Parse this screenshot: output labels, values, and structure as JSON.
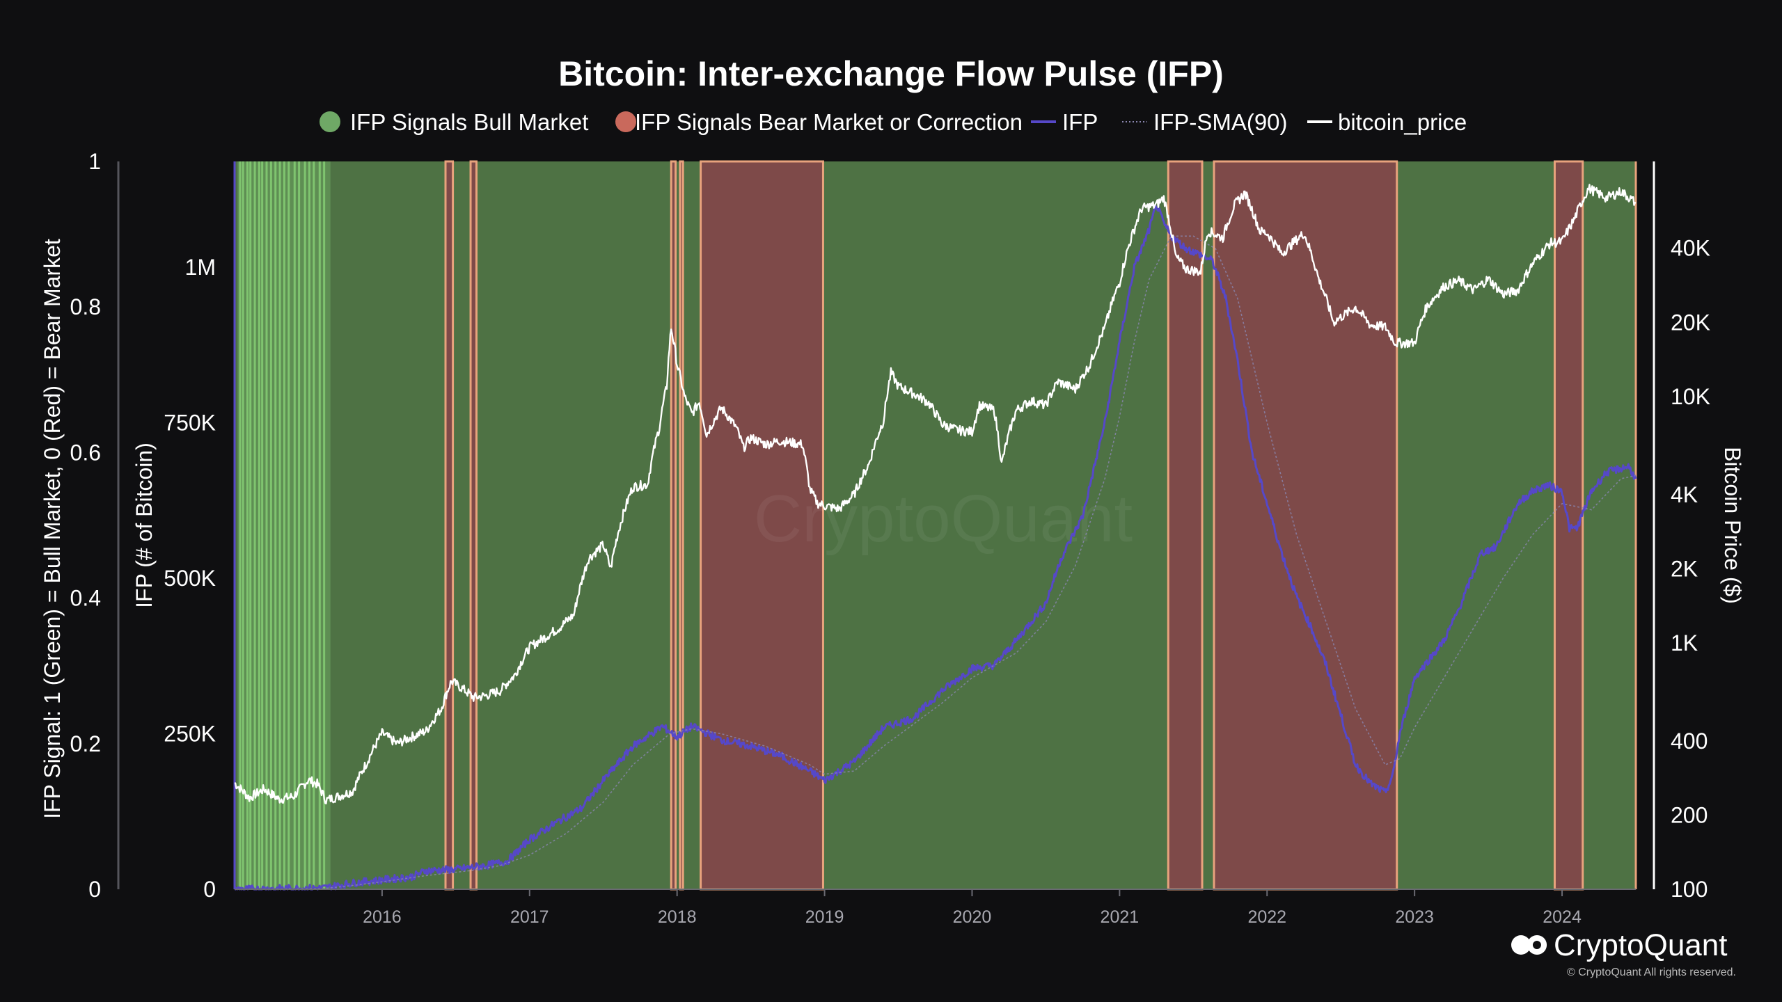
{
  "colors": {
    "background": "#0f0f11",
    "bull": "#4e7244",
    "bull_spike": "#7fc46f",
    "bear": "#7e4a49",
    "border": "#e8a37d",
    "ifp": "#5648c8",
    "sma": "#8a86b0",
    "price": "#ffffff",
    "legend_bull": "#6fa866",
    "legend_bear": "#c9695c"
  },
  "watermark": "CryptoQuant",
  "brand": {
    "name": "CryptoQuant",
    "copyright": "© CryptoQuant All rights reserved."
  },
  "chart_data": {
    "type": "line",
    "title": "Bitcoin: Inter-exchange Flow Pulse (IFP)",
    "legend": [
      {
        "label": "IFP Signals Bull Market",
        "marker": "circle",
        "color": "#6fa866"
      },
      {
        "label": "IFP Signals Bear Market or Correction",
        "marker": "circle",
        "color": "#c9695c"
      },
      {
        "label": "IFP",
        "marker": "line",
        "color": "#5648c8"
      },
      {
        "label": "IFP-SMA(90)",
        "marker": "dotted",
        "color": "#8a86b0"
      },
      {
        "label": "bitcoin_price",
        "marker": "line",
        "color": "#ffffff"
      }
    ],
    "x_range": [
      2015.0,
      2024.5
    ],
    "x_ticks": [
      {
        "v": 2016.0,
        "label": "2016"
      },
      {
        "v": 2017.0,
        "label": "2017"
      },
      {
        "v": 2018.0,
        "label": "2018"
      },
      {
        "v": 2019.0,
        "label": "2019"
      },
      {
        "v": 2020.0,
        "label": "2020"
      },
      {
        "v": 2021.0,
        "label": "2021"
      },
      {
        "v": 2022.0,
        "label": "2022"
      },
      {
        "v": 2023.0,
        "label": "2023"
      },
      {
        "v": 2024.0,
        "label": "2024"
      }
    ],
    "y_signal": {
      "title": "IFP Signal: 1 (Green) = Bull Market, 0 (Red) = Bear Market",
      "range": [
        0,
        1
      ],
      "ticks": [
        {
          "v": 0,
          "label": "0"
        },
        {
          "v": 0.2,
          "label": "0.2"
        },
        {
          "v": 0.4,
          "label": "0.4"
        },
        {
          "v": 0.6,
          "label": "0.6"
        },
        {
          "v": 0.8,
          "label": "0.8"
        },
        {
          "v": 1,
          "label": "1"
        }
      ]
    },
    "y_ifp": {
      "title": "IFP (# of Bitcoin)",
      "range": [
        0,
        1170000
      ],
      "ticks": [
        {
          "v": 0,
          "label": "0"
        },
        {
          "v": 250000,
          "label": "250K"
        },
        {
          "v": 500000,
          "label": "500K"
        },
        {
          "v": 750000,
          "label": "750K"
        },
        {
          "v": 1000000,
          "label": "1M"
        }
      ]
    },
    "y_price": {
      "title": "Bitcoin Price ($)",
      "scale": "log",
      "range": [
        100,
        90000
      ],
      "ticks": [
        {
          "v": 100,
          "label": "100"
        },
        {
          "v": 200,
          "label": "200"
        },
        {
          "v": 400,
          "label": "400"
        },
        {
          "v": 1000,
          "label": "1K"
        },
        {
          "v": 2000,
          "label": "2K"
        },
        {
          "v": 4000,
          "label": "4K"
        },
        {
          "v": 10000,
          "label": "10K"
        },
        {
          "v": 20000,
          "label": "20K"
        },
        {
          "v": 40000,
          "label": "40K"
        }
      ]
    },
    "bull_background": {
      "from": 2015.0,
      "to": 2024.5,
      "signal": 1
    },
    "bull_spike_region": {
      "from": 2015.02,
      "to": 2015.65
    },
    "bull_spikes": [
      2015.03,
      2015.05,
      2015.08,
      2015.1,
      2015.13,
      2015.16,
      2015.18,
      2015.21,
      2015.24,
      2015.27,
      2015.3,
      2015.33,
      2015.36,
      2015.4,
      2015.43,
      2015.47,
      2015.5,
      2015.53,
      2015.57,
      2015.6
    ],
    "bear_regions": [
      {
        "from": 2016.43,
        "to": 2016.48,
        "signal": 0
      },
      {
        "from": 2016.6,
        "to": 2016.64,
        "signal": 0
      },
      {
        "from": 2017.96,
        "to": 2017.99,
        "signal": 0
      },
      {
        "from": 2018.02,
        "to": 2018.04,
        "signal": 0
      },
      {
        "from": 2018.16,
        "to": 2018.99,
        "signal": 0
      },
      {
        "from": 2021.33,
        "to": 2021.56,
        "signal": 0
      },
      {
        "from": 2021.64,
        "to": 2022.88,
        "signal": 0
      },
      {
        "from": 2023.95,
        "to": 2024.14,
        "signal": 0
      }
    ],
    "series": [
      {
        "name": "bitcoin_price",
        "axis": "price",
        "points": [
          [
            2015.0,
            270
          ],
          [
            2015.1,
            235
          ],
          [
            2015.2,
            255
          ],
          [
            2015.3,
            232
          ],
          [
            2015.4,
            238
          ],
          [
            2015.5,
            278
          ],
          [
            2015.56,
            268
          ],
          [
            2015.62,
            230
          ],
          [
            2015.7,
            238
          ],
          [
            2015.8,
            250
          ],
          [
            2015.9,
            330
          ],
          [
            2016.0,
            430
          ],
          [
            2016.1,
            390
          ],
          [
            2016.2,
            415
          ],
          [
            2016.3,
            440
          ],
          [
            2016.4,
            540
          ],
          [
            2016.47,
            700
          ],
          [
            2016.55,
            650
          ],
          [
            2016.62,
            600
          ],
          [
            2016.7,
            610
          ],
          [
            2016.8,
            640
          ],
          [
            2016.9,
            740
          ],
          [
            2017.0,
            960
          ],
          [
            2017.1,
            1050
          ],
          [
            2017.2,
            1150
          ],
          [
            2017.3,
            1300
          ],
          [
            2017.4,
            2200
          ],
          [
            2017.5,
            2500
          ],
          [
            2017.55,
            2000
          ],
          [
            2017.6,
            2800
          ],
          [
            2017.7,
            4300
          ],
          [
            2017.8,
            4400
          ],
          [
            2017.88,
            7500
          ],
          [
            2017.93,
            11000
          ],
          [
            2017.96,
            19000
          ],
          [
            2018.0,
            13500
          ],
          [
            2018.05,
            10000
          ],
          [
            2018.1,
            8500
          ],
          [
            2018.15,
            9500
          ],
          [
            2018.2,
            7000
          ],
          [
            2018.3,
            9000
          ],
          [
            2018.4,
            7500
          ],
          [
            2018.45,
            6200
          ],
          [
            2018.5,
            6800
          ],
          [
            2018.6,
            6400
          ],
          [
            2018.7,
            6600
          ],
          [
            2018.85,
            6400
          ],
          [
            2018.9,
            4200
          ],
          [
            2018.95,
            3700
          ],
          [
            2019.0,
            3600
          ],
          [
            2019.1,
            3500
          ],
          [
            2019.2,
            4000
          ],
          [
            2019.3,
            5300
          ],
          [
            2019.4,
            8000
          ],
          [
            2019.45,
            12500
          ],
          [
            2019.5,
            11000
          ],
          [
            2019.6,
            10300
          ],
          [
            2019.7,
            9500
          ],
          [
            2019.8,
            7700
          ],
          [
            2019.9,
            7300
          ],
          [
            2020.0,
            7200
          ],
          [
            2020.05,
            9200
          ],
          [
            2020.15,
            8800
          ],
          [
            2020.2,
            5300
          ],
          [
            2020.3,
            8800
          ],
          [
            2020.4,
            9600
          ],
          [
            2020.5,
            9200
          ],
          [
            2020.58,
            11500
          ],
          [
            2020.7,
            10700
          ],
          [
            2020.8,
            13500
          ],
          [
            2020.9,
            19000
          ],
          [
            2021.0,
            29000
          ],
          [
            2021.1,
            48000
          ],
          [
            2021.15,
            58000
          ],
          [
            2021.25,
            60000
          ],
          [
            2021.3,
            64000
          ],
          [
            2021.38,
            37000
          ],
          [
            2021.45,
            33000
          ],
          [
            2021.55,
            32000
          ],
          [
            2021.6,
            47000
          ],
          [
            2021.7,
            44000
          ],
          [
            2021.78,
            60000
          ],
          [
            2021.85,
            67000
          ],
          [
            2021.95,
            47000
          ],
          [
            2022.0,
            46000
          ],
          [
            2022.1,
            38000
          ],
          [
            2022.25,
            46000
          ],
          [
            2022.35,
            30000
          ],
          [
            2022.45,
            20000
          ],
          [
            2022.6,
            23000
          ],
          [
            2022.7,
            19500
          ],
          [
            2022.8,
            19200
          ],
          [
            2022.87,
            16500
          ],
          [
            2023.0,
            16500
          ],
          [
            2023.08,
            23000
          ],
          [
            2023.2,
            28000
          ],
          [
            2023.3,
            29500
          ],
          [
            2023.4,
            27000
          ],
          [
            2023.5,
            30000
          ],
          [
            2023.6,
            26000
          ],
          [
            2023.7,
            27000
          ],
          [
            2023.8,
            34500
          ],
          [
            2023.92,
            42000
          ],
          [
            2024.0,
            42500
          ],
          [
            2024.08,
            52000
          ],
          [
            2024.18,
            70000
          ],
          [
            2024.3,
            64000
          ],
          [
            2024.4,
            68000
          ],
          [
            2024.5,
            61000
          ]
        ]
      },
      {
        "name": "IFP",
        "axis": "ifp",
        "points": [
          [
            2015.0,
            0
          ],
          [
            2015.6,
            2000
          ],
          [
            2015.8,
            10000
          ],
          [
            2016.0,
            15000
          ],
          [
            2016.2,
            20000
          ],
          [
            2016.3,
            30000
          ],
          [
            2016.5,
            32000
          ],
          [
            2016.7,
            38000
          ],
          [
            2016.85,
            45000
          ],
          [
            2017.0,
            80000
          ],
          [
            2017.2,
            110000
          ],
          [
            2017.35,
            130000
          ],
          [
            2017.5,
            175000
          ],
          [
            2017.7,
            230000
          ],
          [
            2017.9,
            262000
          ],
          [
            2018.0,
            245000
          ],
          [
            2018.1,
            262000
          ],
          [
            2018.3,
            240000
          ],
          [
            2018.5,
            230000
          ],
          [
            2018.7,
            215000
          ],
          [
            2018.9,
            190000
          ],
          [
            2019.0,
            175000
          ],
          [
            2019.2,
            205000
          ],
          [
            2019.4,
            260000
          ],
          [
            2019.6,
            275000
          ],
          [
            2019.8,
            320000
          ],
          [
            2020.0,
            355000
          ],
          [
            2020.15,
            360000
          ],
          [
            2020.3,
            400000
          ],
          [
            2020.5,
            460000
          ],
          [
            2020.6,
            530000
          ],
          [
            2020.75,
            600000
          ],
          [
            2020.9,
            750000
          ],
          [
            2021.0,
            880000
          ],
          [
            2021.1,
            1000000
          ],
          [
            2021.15,
            1030000
          ],
          [
            2021.2,
            1060000
          ],
          [
            2021.25,
            1100000
          ],
          [
            2021.3,
            1070000
          ],
          [
            2021.35,
            1050000
          ],
          [
            2021.45,
            1030000
          ],
          [
            2021.55,
            1020000
          ],
          [
            2021.63,
            1010000
          ],
          [
            2021.72,
            950000
          ],
          [
            2021.8,
            850000
          ],
          [
            2021.9,
            700000
          ],
          [
            2022.0,
            620000
          ],
          [
            2022.1,
            540000
          ],
          [
            2022.2,
            470000
          ],
          [
            2022.3,
            420000
          ],
          [
            2022.4,
            360000
          ],
          [
            2022.5,
            280000
          ],
          [
            2022.6,
            200000
          ],
          [
            2022.7,
            170000
          ],
          [
            2022.8,
            155000
          ],
          [
            2022.85,
            180000
          ],
          [
            2022.9,
            250000
          ],
          [
            2023.0,
            340000
          ],
          [
            2023.1,
            370000
          ],
          [
            2023.2,
            400000
          ],
          [
            2023.3,
            450000
          ],
          [
            2023.45,
            540000
          ],
          [
            2023.55,
            550000
          ],
          [
            2023.7,
            620000
          ],
          [
            2023.8,
            640000
          ],
          [
            2023.9,
            650000
          ],
          [
            2024.0,
            640000
          ],
          [
            2024.05,
            580000
          ],
          [
            2024.1,
            580000
          ],
          [
            2024.2,
            640000
          ],
          [
            2024.3,
            670000
          ],
          [
            2024.45,
            680000
          ],
          [
            2024.5,
            660000
          ]
        ]
      },
      {
        "name": "IFP-SMA(90)",
        "axis": "ifp",
        "points": [
          [
            2015.0,
            0
          ],
          [
            2015.6,
            1000
          ],
          [
            2015.8,
            6000
          ],
          [
            2016.0,
            12000
          ],
          [
            2016.3,
            22000
          ],
          [
            2016.6,
            30000
          ],
          [
            2016.8,
            38000
          ],
          [
            2017.0,
            55000
          ],
          [
            2017.25,
            90000
          ],
          [
            2017.5,
            140000
          ],
          [
            2017.7,
            200000
          ],
          [
            2017.95,
            250000
          ],
          [
            2018.1,
            258000
          ],
          [
            2018.3,
            250000
          ],
          [
            2018.6,
            230000
          ],
          [
            2018.9,
            200000
          ],
          [
            2019.0,
            185000
          ],
          [
            2019.2,
            190000
          ],
          [
            2019.4,
            230000
          ],
          [
            2019.6,
            265000
          ],
          [
            2019.8,
            300000
          ],
          [
            2020.0,
            340000
          ],
          [
            2020.3,
            380000
          ],
          [
            2020.5,
            430000
          ],
          [
            2020.7,
            520000
          ],
          [
            2020.9,
            660000
          ],
          [
            2021.0,
            760000
          ],
          [
            2021.1,
            880000
          ],
          [
            2021.2,
            980000
          ],
          [
            2021.35,
            1050000
          ],
          [
            2021.5,
            1050000
          ],
          [
            2021.65,
            1030000
          ],
          [
            2021.8,
            950000
          ],
          [
            2021.9,
            850000
          ],
          [
            2022.0,
            750000
          ],
          [
            2022.2,
            570000
          ],
          [
            2022.4,
            430000
          ],
          [
            2022.6,
            290000
          ],
          [
            2022.8,
            200000
          ],
          [
            2022.9,
            210000
          ],
          [
            2023.0,
            260000
          ],
          [
            2023.2,
            340000
          ],
          [
            2023.4,
            420000
          ],
          [
            2023.6,
            500000
          ],
          [
            2023.8,
            570000
          ],
          [
            2024.0,
            620000
          ],
          [
            2024.2,
            610000
          ],
          [
            2024.4,
            660000
          ],
          [
            2024.5,
            665000
          ]
        ]
      }
    ]
  }
}
